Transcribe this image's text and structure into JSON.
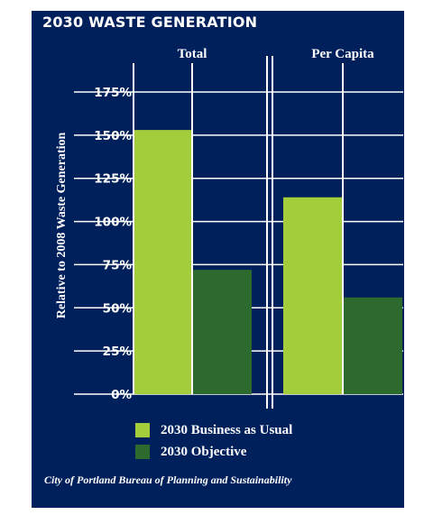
{
  "chart_data": {
    "type": "bar",
    "title": "2030 WASTE GENERATION",
    "ylabel": "Relative to 2008 Waste Generation",
    "ylim": [
      0,
      175
    ],
    "yticks": [
      "0%",
      "25%",
      "50%",
      "75%",
      "100%",
      "125%",
      "150%",
      "175%"
    ],
    "tick_values": [
      0,
      25,
      50,
      75,
      100,
      125,
      150,
      175
    ],
    "categories": [
      "Total",
      "Per Capita"
    ],
    "series": [
      {
        "name": "2030 Business as Usual",
        "values": [
          153,
          114
        ],
        "color": "#a3cd3a"
      },
      {
        "name": "2030 Objective",
        "values": [
          72,
          56
        ],
        "color": "#2d6a2e"
      }
    ],
    "grid": true,
    "legend_position": "bottom"
  },
  "source": "City of Portland Bureau of Planning and Sustainability",
  "colors": {
    "background": "#00205b",
    "text": "#ffffff",
    "gridline": "#ffffff"
  }
}
